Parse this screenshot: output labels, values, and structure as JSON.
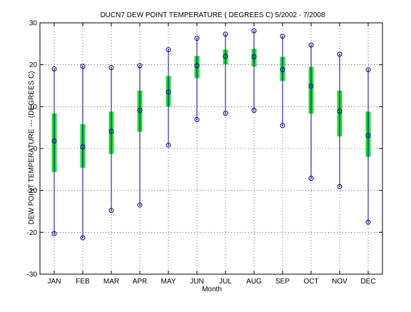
{
  "chart_data": {
    "type": "box",
    "title": "DUCN7  DEW POINT TEMPERATURE ( DEGREES C) 5/2002 - 7/2008",
    "xlabel": "Month",
    "ylabel": "DEW POINT TEMPERATURE --- (DEGREES C)",
    "ylim": [
      -30,
      30
    ],
    "yticks": [
      -30,
      -20,
      -10,
      0,
      10,
      20,
      30
    ],
    "ytick_labels": [
      "-30",
      "-20",
      "-10",
      "0",
      "10",
      "20",
      "30"
    ],
    "grid": true,
    "categories": [
      "JAN",
      "FEB",
      "MAR",
      "APR",
      "MAY",
      "JUN",
      "JUL",
      "AUG",
      "SEP",
      "OCT",
      "NOV",
      "DEC"
    ],
    "min": [
      -20.3,
      -21.3,
      -14.8,
      -13.5,
      0.8,
      6.9,
      8.4,
      9.1,
      5.5,
      -7.1,
      -9.1,
      -17.6
    ],
    "q1": [
      -5.6,
      -4.6,
      -1.3,
      4.0,
      10.0,
      16.8,
      20.1,
      19.6,
      16.1,
      8.3,
      2.9,
      -2.0
    ],
    "median": [
      1.8,
      0.4,
      4.1,
      9.1,
      13.5,
      19.8,
      22.0,
      21.9,
      18.8,
      14.9,
      8.9,
      3.1
    ],
    "q3": [
      8.4,
      5.8,
      8.8,
      13.8,
      17.3,
      22.1,
      23.6,
      23.8,
      21.9,
      19.5,
      13.8,
      8.8
    ],
    "max": [
      19.0,
      19.6,
      19.3,
      19.8,
      23.6,
      26.3,
      27.3,
      28.1,
      26.8,
      24.7,
      22.5,
      18.8
    ],
    "colors": {
      "whisker": "#0000a0",
      "box": "#22dd33",
      "marker": "#000080",
      "grid": "#000000"
    }
  }
}
